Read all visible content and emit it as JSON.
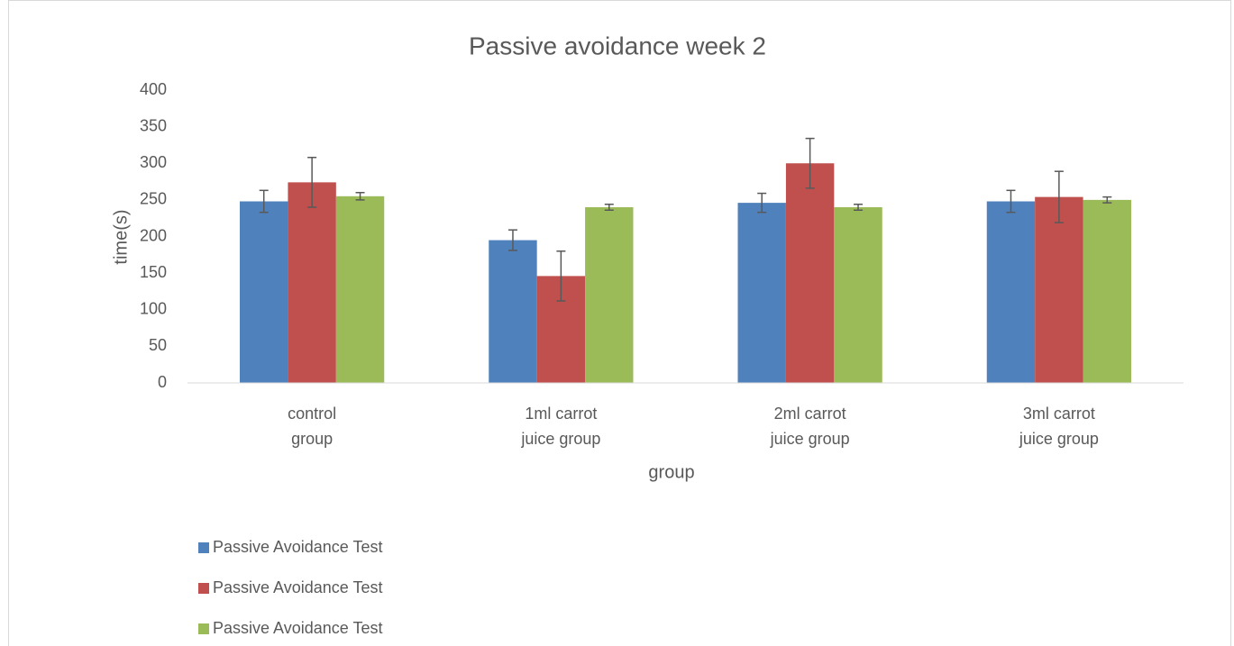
{
  "chart_data": {
    "type": "bar",
    "title": "Passive avoidance week 2",
    "x_label": "group",
    "y_label": "time(s)",
    "categories": [
      [
        "control",
        "group"
      ],
      [
        "1ml carrot",
        "juice group"
      ],
      [
        "2ml carrot",
        "juice group"
      ],
      [
        "3ml carrot",
        "juice group"
      ]
    ],
    "series": [
      {
        "name": "Passive Avoidance Test",
        "color": "#4f81bd",
        "values": [
          248,
          195,
          246,
          248
        ],
        "errors": [
          15,
          14,
          13,
          15
        ]
      },
      {
        "name": "Passive Avoidance Test",
        "color": "#c0504d",
        "values": [
          274,
          146,
          300,
          254
        ],
        "errors": [
          34,
          34,
          34,
          35
        ]
      },
      {
        "name": "Passive Avoidance Test",
        "color": "#9bbb59",
        "values": [
          255,
          240,
          240,
          250
        ],
        "errors": [
          5,
          4,
          4,
          4
        ]
      }
    ],
    "ylim": [
      0,
      400
    ],
    "yticks": [
      0,
      50,
      100,
      150,
      200,
      250,
      300,
      350,
      400
    ],
    "grid": false
  }
}
